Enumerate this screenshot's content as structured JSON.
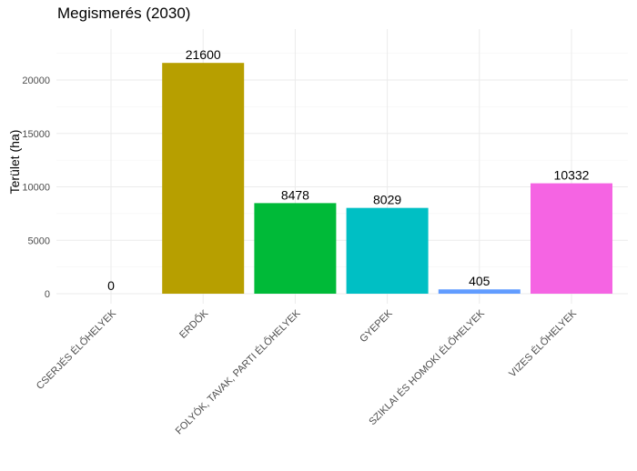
{
  "chart_data": {
    "type": "bar",
    "title": "Megismerés (2030)",
    "xlabel": "",
    "ylabel": "Terület (ha)",
    "categories": [
      "CSERJÉS ÉLŐHELYEK",
      "ERDŐK",
      "FOLYÓK, TAVAK, PARTI ÉLŐHELYEK",
      "GYEPEK",
      "SZIKLAI ÉS HOMOKI ÉLŐHELYEK",
      "VIZES ÉLŐHELYEK"
    ],
    "values": [
      0,
      21600,
      8478,
      8029,
      405,
      10332
    ],
    "data_labels": [
      "0",
      "21600",
      "8478",
      "8029",
      "405",
      "10332"
    ],
    "colors": [
      "#F8766D",
      "#B79F00",
      "#00BA38",
      "#00BFC4",
      "#619CFF",
      "#F564E3"
    ],
    "ylim": [
      0,
      24000
    ],
    "yticks": [
      0,
      5000,
      10000,
      15000,
      20000
    ],
    "ytick_labels": [
      "0",
      "5000",
      "10000",
      "15000",
      "20000"
    ],
    "grid": true,
    "legend": "none"
  }
}
